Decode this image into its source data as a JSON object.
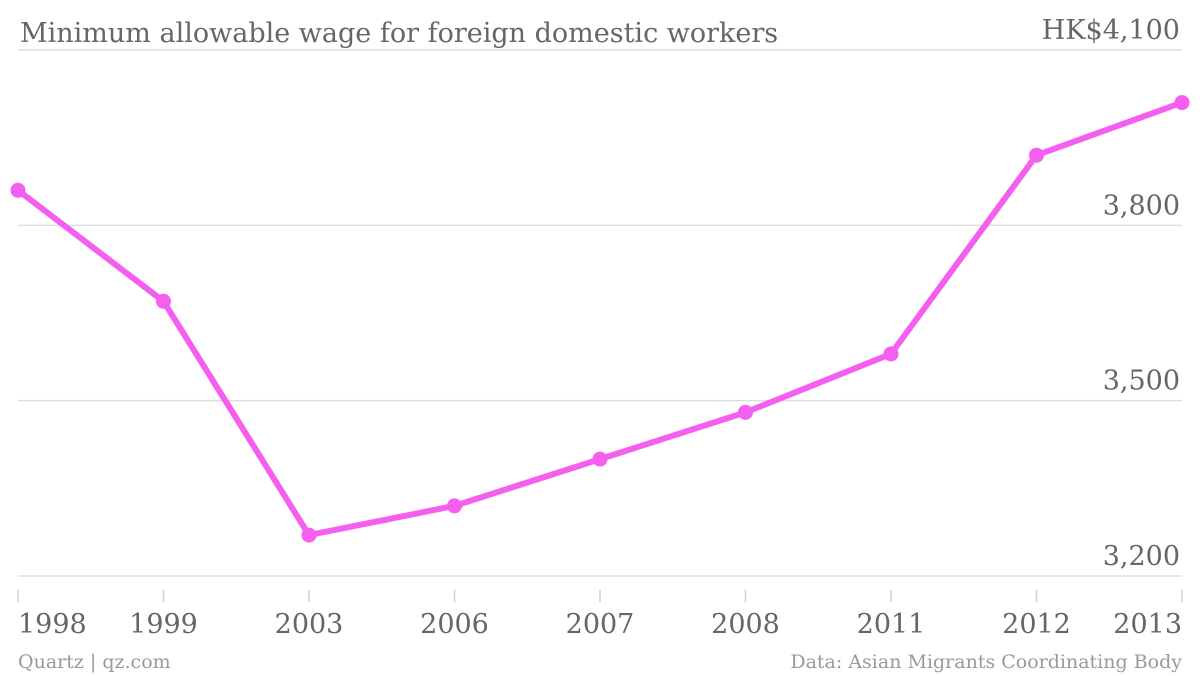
{
  "chart_data": {
    "type": "line",
    "title": "Minimum allowable wage for foreign domestic workers",
    "ylabel": "",
    "xlabel": "",
    "ylim": [
      3200,
      4100
    ],
    "yticks": [
      {
        "value": 4100,
        "label": "HK$4,100"
      },
      {
        "value": 3800,
        "label": "3,800"
      },
      {
        "value": 3500,
        "label": "3,500"
      },
      {
        "value": 3200,
        "label": "3,200"
      }
    ],
    "categories": [
      "1998",
      "1999",
      "2003",
      "2006",
      "2007",
      "2008",
      "2011",
      "2012",
      "2013"
    ],
    "series": [
      {
        "values": [
          3860,
          3670,
          3270,
          3320,
          3400,
          3480,
          3580,
          3920,
          4010
        ]
      }
    ],
    "grid": true,
    "colors": {
      "line": "#f55ff0"
    }
  },
  "footer": {
    "source_left": "Quartz | qz.com",
    "source_right": "Data: Asian Migrants Coordinating Body"
  }
}
